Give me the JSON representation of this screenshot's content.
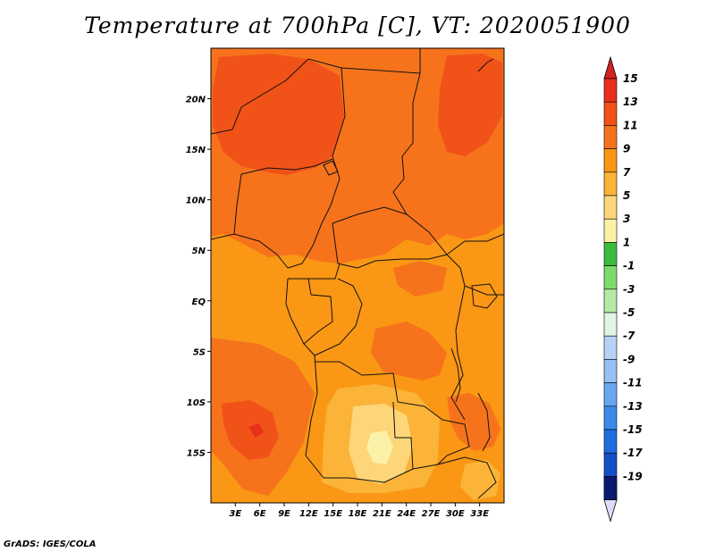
{
  "title": "Temperature at 700hPa [C], VT: 2020051900",
  "credit": "GrADS: IGES/COLA",
  "map": {
    "lon_range": [
      0,
      36
    ],
    "lat_range": [
      -20,
      25
    ],
    "lat_ticks": [
      {
        "value": 20,
        "label": "20N"
      },
      {
        "value": 15,
        "label": "15N"
      },
      {
        "value": 10,
        "label": "10N"
      },
      {
        "value": 5,
        "label": "5N"
      },
      {
        "value": 0,
        "label": "EQ"
      },
      {
        "value": -5,
        "label": "5S"
      },
      {
        "value": -10,
        "label": "10S"
      },
      {
        "value": -15,
        "label": "15S"
      }
    ],
    "lon_ticks": [
      {
        "value": 3,
        "label": "3E"
      },
      {
        "value": 6,
        "label": "6E"
      },
      {
        "value": 9,
        "label": "9E"
      },
      {
        "value": 12,
        "label": "12E"
      },
      {
        "value": 15,
        "label": "15E"
      },
      {
        "value": 18,
        "label": "18E"
      },
      {
        "value": 21,
        "label": "21E"
      },
      {
        "value": 24,
        "label": "24E"
      },
      {
        "value": 27,
        "label": "27E"
      },
      {
        "value": 30,
        "label": "30E"
      },
      {
        "value": 33,
        "label": "33E"
      }
    ]
  },
  "colorbar": {
    "labels": [
      "15",
      "13",
      "11",
      "9",
      "7",
      "5",
      "3",
      "1",
      "-1",
      "-3",
      "-5",
      "-7",
      "-9",
      "-11",
      "-13",
      "-15",
      "-17",
      "-19"
    ],
    "colors": [
      "#e8301a",
      "#f05218",
      "#f6731c",
      "#fa9714",
      "#fbb338",
      "#fdd679",
      "#fcf2a7",
      "#3cbc3d",
      "#7ddb6e",
      "#b4eaa3",
      "#e0f5e4",
      "#b4d3f6",
      "#95c1f5",
      "#6aa6f0",
      "#3c8aec",
      "#1e6ee0",
      "#1550c8",
      "#0c2fa6"
    ],
    "top_arrow_color": "#d22222",
    "bottom_arrow_color": "#dcdcf8",
    "bottom_color": "#0a1a70"
  }
}
